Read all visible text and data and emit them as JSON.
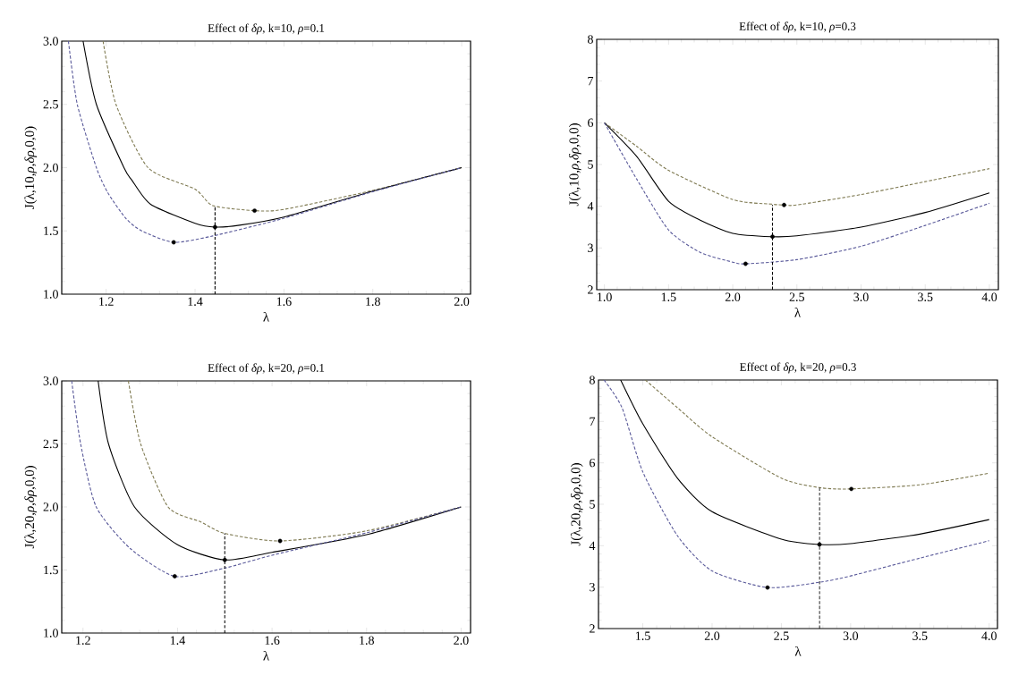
{
  "chart_data": [
    {
      "type": "line",
      "title": "Effect of *δρ*, k=10, *ρ*=0.1",
      "xlabel": "λ",
      "ylabel": "J(λ,10,*ρ*,*δρ*,0,0)",
      "xlim": [
        1.1,
        2.02
      ],
      "ylim": [
        1.0,
        3.0
      ],
      "xticks": [
        1.2,
        1.4,
        1.6,
        1.8,
        {
          "value": 2.0,
          "label": "2.0"
        }
      ],
      "yticks": [
        {
          "value": 1.0,
          "label": "1.0"
        },
        1.5,
        {
          "value": 2.0,
          "label": "2.0"
        },
        2.5,
        {
          "value": 3.0,
          "label": "3.0"
        }
      ],
      "series": [
        {
          "type": "line",
          "line_style": "dashed",
          "color": "#7f7a52",
          "x": [
            1.193,
            1.222,
            1.294,
            1.4,
            1.44,
            1.534,
            1.6,
            1.8,
            2.0
          ],
          "values": [
            3.0,
            2.5,
            2.0,
            1.83,
            1.7,
            1.66,
            1.67,
            1.82,
            2.0
          ]
        },
        {
          "type": "line",
          "line_style": "solid",
          "color": "#000000",
          "x": [
            1.148,
            1.178,
            1.24,
            1.258,
            1.3,
            1.4,
            1.445,
            1.5,
            1.6,
            1.8,
            2.0
          ],
          "values": [
            3.0,
            2.5,
            2.0,
            1.9,
            1.71,
            1.56,
            1.53,
            1.545,
            1.61,
            1.815,
            2.0
          ]
        },
        {
          "type": "line",
          "line_style": "dashed",
          "color": "#5a5a9a",
          "x": [
            1.115,
            1.135,
            1.178,
            1.204,
            1.244,
            1.28,
            1.352,
            1.44,
            1.6,
            1.8,
            2.0
          ],
          "values": [
            3.0,
            2.5,
            2.0,
            1.8,
            1.6,
            1.5,
            1.41,
            1.46,
            1.6,
            1.81,
            2.0
          ]
        },
        {
          "type": "scatter",
          "marker": "circle",
          "color": "#000000",
          "x": [
            1.534,
            1.445,
            1.352
          ],
          "values": [
            1.66,
            1.53,
            1.41
          ]
        },
        {
          "type": "line",
          "line_style": "dashed",
          "color": "#000000",
          "x": [
            1.445,
            1.445
          ],
          "values": [
            1.0,
            1.69
          ]
        }
      ]
    },
    {
      "type": "line",
      "title": "Effect of *δρ*, k=10, *ρ*=0.3",
      "xlabel": "λ",
      "ylabel": "J(λ,10,*ρ*,*δρ*,0,0)",
      "xlim": [
        0.94,
        4.07
      ],
      "ylim": [
        2,
        8
      ],
      "xticks": [
        {
          "value": 1.0,
          "label": "1.0"
        },
        1.5,
        {
          "value": 2.0,
          "label": "2.0"
        },
        2.5,
        {
          "value": 3.0,
          "label": "3.0"
        },
        3.5,
        {
          "value": 4.0,
          "label": "4.0"
        }
      ],
      "yticks": [
        2,
        3,
        4,
        5,
        6,
        7,
        8
      ],
      "series": [
        {
          "type": "line",
          "line_style": "dashed",
          "color": "#7f7a52",
          "x": [
            1.0,
            1.25,
            1.5,
            2.0,
            2.3,
            2.4,
            2.5,
            3.0,
            3.5,
            4.0
          ],
          "values": [
            6.0,
            5.44,
            4.86,
            4.16,
            4.05,
            4.03,
            4.03,
            4.28,
            4.59,
            4.9
          ]
        },
        {
          "type": "line",
          "line_style": "solid",
          "color": "#000000",
          "x": [
            1.0,
            1.25,
            1.5,
            1.75,
            2.0,
            2.3,
            2.5,
            3.0,
            3.5,
            4.0
          ],
          "values": [
            6.0,
            5.2,
            4.12,
            3.66,
            3.35,
            3.27,
            3.29,
            3.5,
            3.85,
            4.32
          ]
        },
        {
          "type": "line",
          "line_style": "dashed",
          "color": "#5a5a9a",
          "x": [
            1.0,
            1.25,
            1.5,
            1.75,
            2.0,
            2.1,
            2.5,
            3.0,
            3.5,
            4.0
          ],
          "values": [
            6.0,
            4.66,
            3.43,
            2.89,
            2.66,
            2.62,
            2.72,
            3.04,
            3.54,
            4.07
          ]
        },
        {
          "type": "scatter",
          "marker": "circle",
          "color": "#000000",
          "x": [
            2.4,
            2.31,
            2.1
          ],
          "values": [
            4.03,
            3.27,
            2.62
          ]
        },
        {
          "type": "line",
          "line_style": "dashed",
          "color": "#000000",
          "x": [
            2.31,
            2.31
          ],
          "values": [
            2,
            4.03
          ]
        }
      ]
    },
    {
      "type": "line",
      "title": "Effect of *δρ*, k=20, *ρ*=0.1",
      "xlabel": "λ",
      "ylabel": "J(λ,20,*ρ*,*δρ*,0,0)",
      "xlim": [
        1.155,
        2.02
      ],
      "ylim": [
        1.0,
        3.0
      ],
      "xticks": [
        1.2,
        1.4,
        1.6,
        1.8,
        {
          "value": 2.0,
          "label": "2.0"
        }
      ],
      "yticks": [
        {
          "value": 1.0,
          "label": "1.0"
        },
        1.5,
        {
          "value": 2.0,
          "label": "2.0"
        },
        2.5,
        {
          "value": 3.0,
          "label": "3.0"
        }
      ],
      "series": [
        {
          "type": "line",
          "line_style": "dashed",
          "color": "#7f7a52",
          "x": [
            1.296,
            1.322,
            1.38,
            1.45,
            1.5,
            1.617,
            1.8,
            2.0
          ],
          "values": [
            3.0,
            2.5,
            2.0,
            1.88,
            1.79,
            1.73,
            1.81,
            2.0
          ]
        },
        {
          "type": "line",
          "line_style": "solid",
          "color": "#000000",
          "x": [
            1.232,
            1.254,
            1.309,
            1.4,
            1.5,
            1.6,
            1.8,
            2.0
          ],
          "values": [
            3.0,
            2.5,
            2.0,
            1.7,
            1.58,
            1.64,
            1.78,
            2.0
          ]
        },
        {
          "type": "line",
          "line_style": "dashed",
          "color": "#5a5a9a",
          "x": [
            1.176,
            1.195,
            1.228,
            1.3,
            1.394,
            1.5,
            1.6,
            1.8,
            2.0
          ],
          "values": [
            3.0,
            2.5,
            2.0,
            1.67,
            1.45,
            1.515,
            1.617,
            1.795,
            2.0
          ]
        },
        {
          "type": "scatter",
          "marker": "circle",
          "color": "#000000",
          "x": [
            1.617,
            1.5,
            1.394
          ],
          "values": [
            1.73,
            1.58,
            1.45
          ]
        },
        {
          "type": "line",
          "line_style": "dashed",
          "color": "#000000",
          "x": [
            1.5,
            1.5
          ],
          "values": [
            1.0,
            1.79
          ]
        }
      ]
    },
    {
      "type": "line",
      "title": "Effect of *δρ*, k=20, *ρ*=0.3",
      "xlabel": "λ",
      "ylabel": "J(λ,20,*ρ*,*δρ*,0,0)",
      "xlim": [
        1.18,
        4.06
      ],
      "ylim": [
        2,
        8
      ],
      "xticks": [
        1.5,
        {
          "value": 2.0,
          "label": "2.0"
        },
        2.5,
        {
          "value": 3.0,
          "label": "3.0"
        },
        3.5,
        {
          "value": 4.0,
          "label": "4.0"
        }
      ],
      "yticks": [
        2,
        3,
        4,
        5,
        6,
        7,
        8
      ],
      "series": [
        {
          "type": "line",
          "line_style": "dashed",
          "color": "#7f7a52",
          "x": [
            1.518,
            1.75,
            2.0,
            2.5,
            2.78,
            3.0,
            3.5,
            4.0
          ],
          "values": [
            8.0,
            7.33,
            6.63,
            5.63,
            5.4,
            5.37,
            5.47,
            5.75
          ]
        },
        {
          "type": "line",
          "line_style": "solid",
          "color": "#000000",
          "x": [
            1.34,
            1.5,
            1.75,
            2.0,
            2.5,
            2.775,
            3.0,
            3.5,
            4.0
          ],
          "values": [
            8.0,
            6.94,
            5.63,
            4.82,
            4.16,
            4.03,
            4.05,
            4.28,
            4.63
          ]
        },
        {
          "type": "line",
          "line_style": "dashed",
          "color": "#5a5a9a",
          "x": [
            1.22,
            1.35,
            1.5,
            1.75,
            2.0,
            2.4,
            2.78,
            3.0,
            3.5,
            4.0
          ],
          "values": [
            8.0,
            7.33,
            5.78,
            4.24,
            3.39,
            2.99,
            3.12,
            3.27,
            3.7,
            4.12
          ]
        },
        {
          "type": "scatter",
          "marker": "circle",
          "color": "#000000",
          "x": [
            3.005,
            2.775,
            2.4
          ],
          "values": [
            5.37,
            4.03,
            2.99
          ]
        },
        {
          "type": "line",
          "line_style": "dashed",
          "color": "#000000",
          "x": [
            2.775,
            2.775
          ],
          "values": [
            2,
            5.4
          ]
        }
      ]
    }
  ]
}
